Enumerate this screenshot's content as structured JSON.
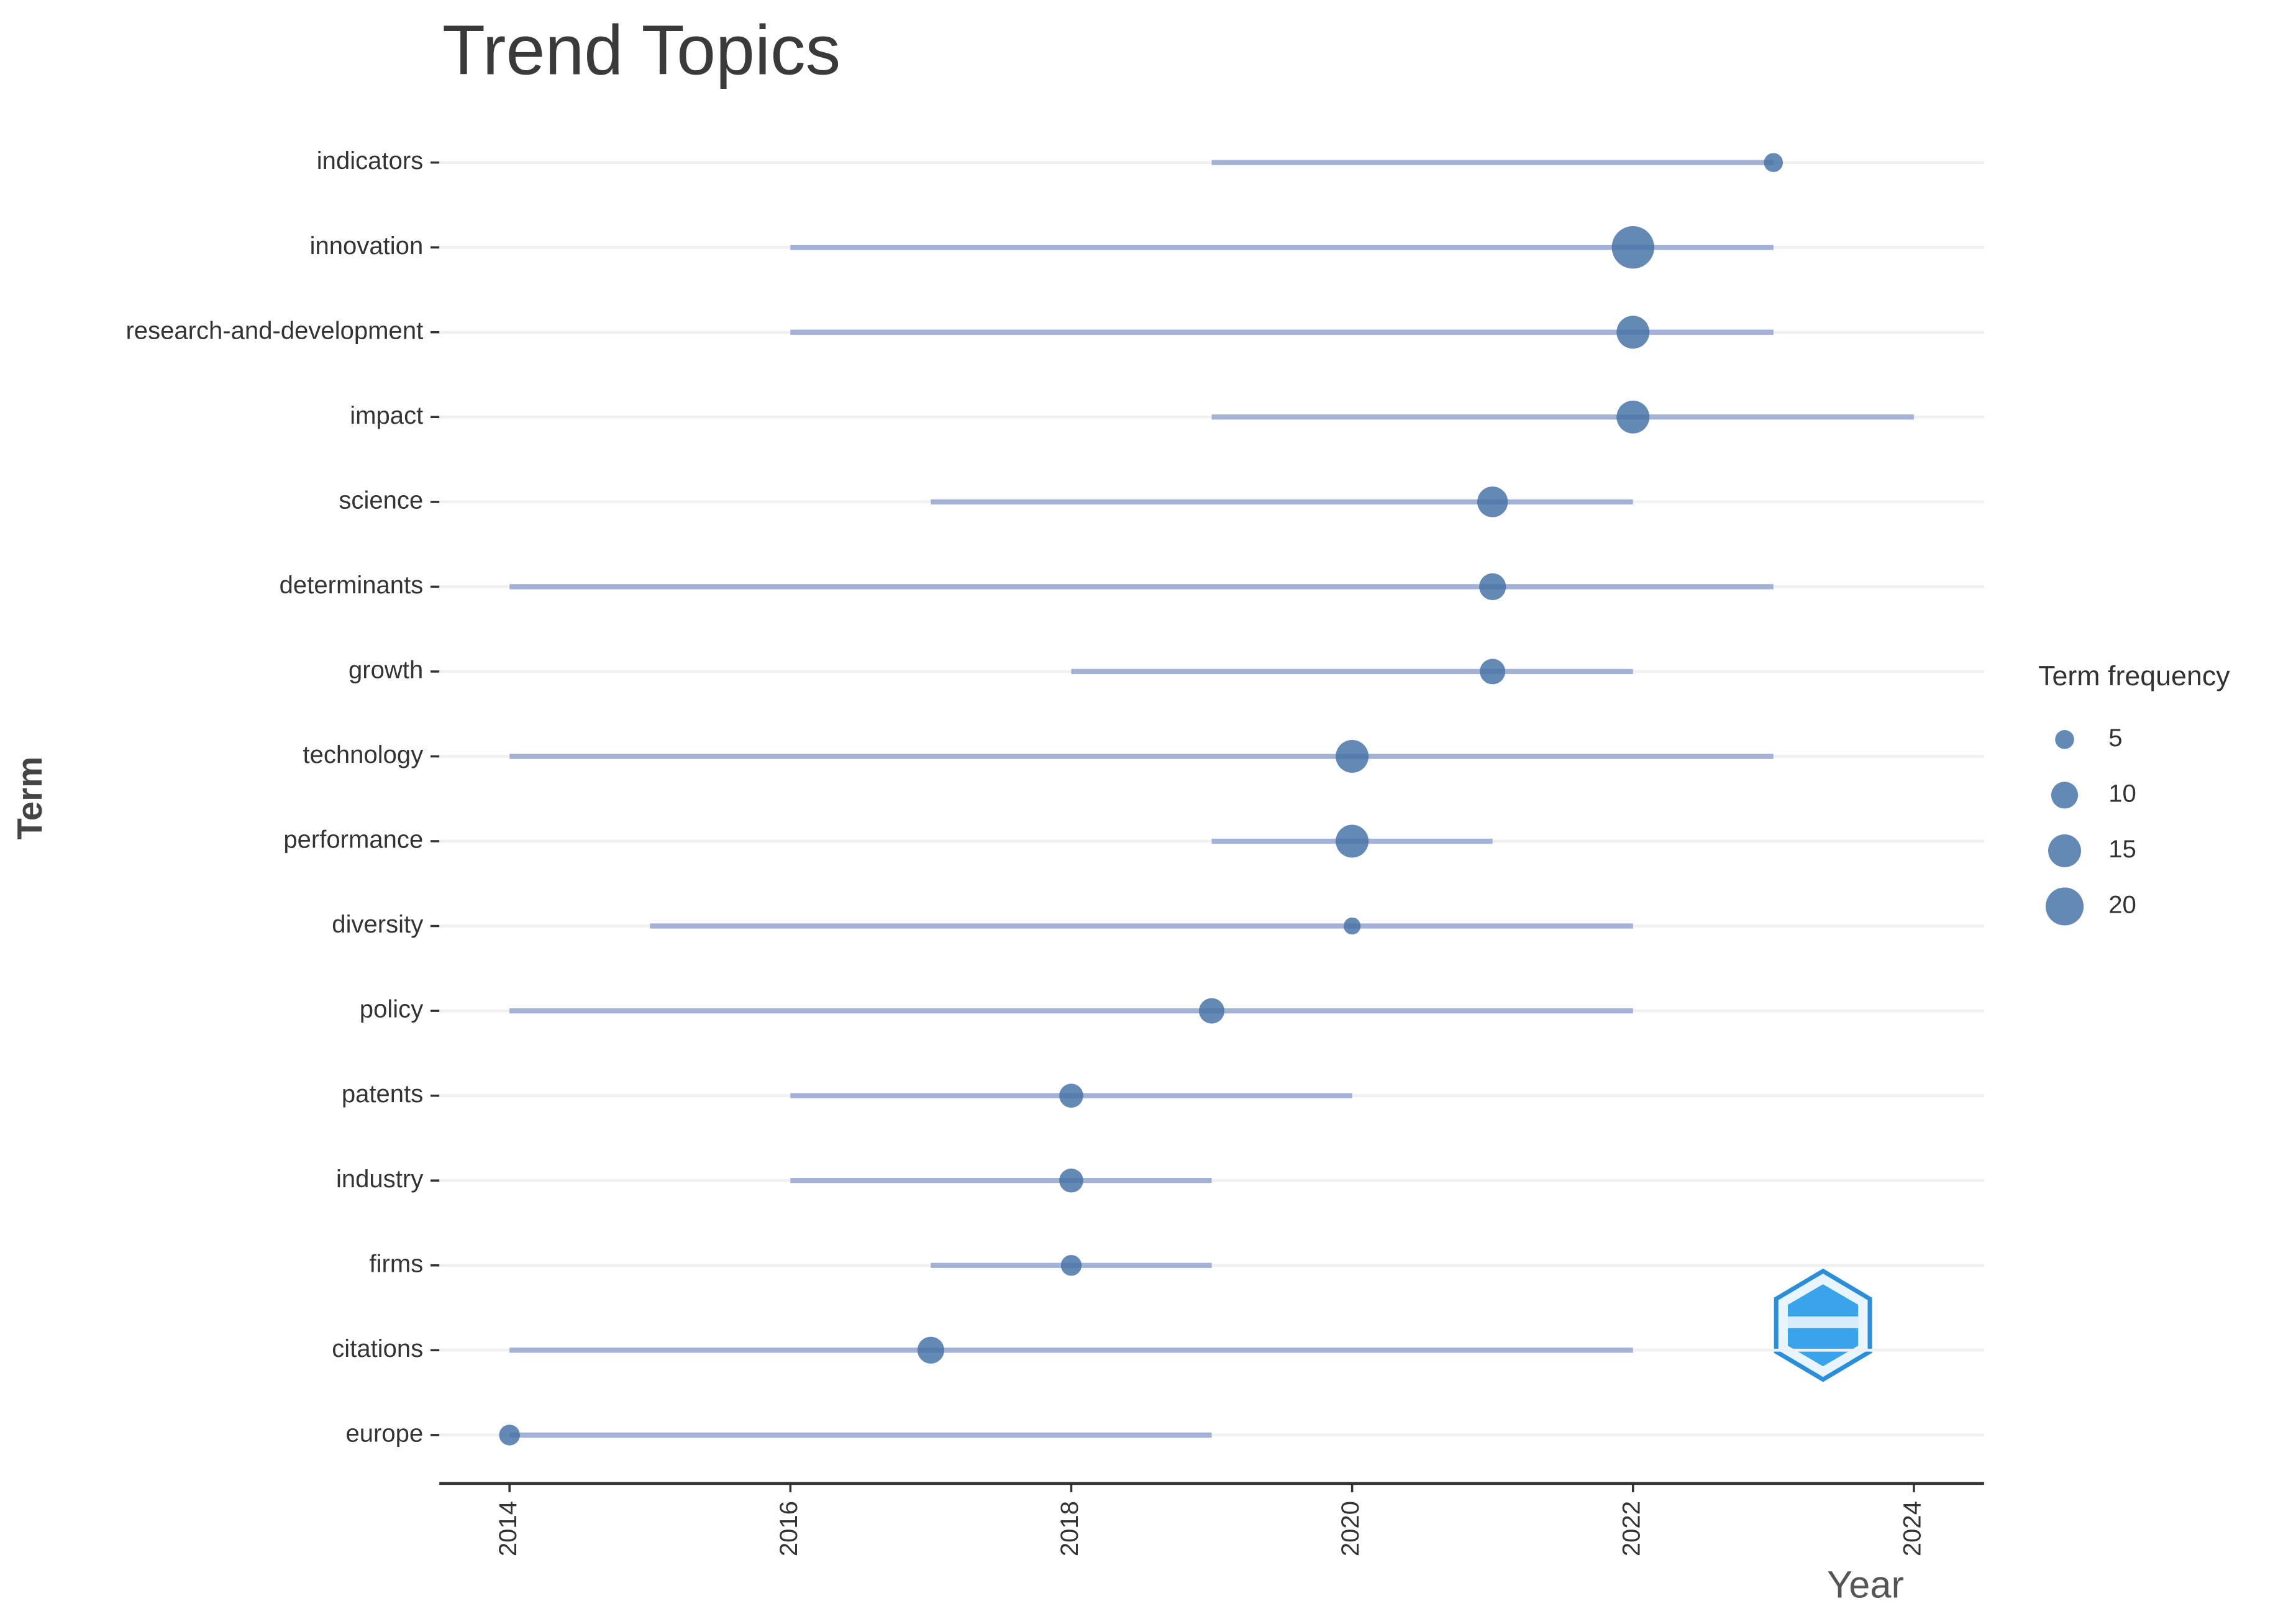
{
  "chart_data": {
    "type": "dumbbell",
    "title": "Trend Topics",
    "x_label": "Year",
    "y_label": "Term",
    "categories": [
      "indicators",
      "innovation",
      "research-and-development",
      "impact",
      "science",
      "determinants",
      "growth",
      "technology",
      "performance",
      "diversity",
      "policy",
      "patents",
      "industry",
      "firms",
      "citations",
      "europe"
    ],
    "start": [
      2019,
      2016,
      2016,
      2019,
      2017,
      2014,
      2018,
      2014,
      2019,
      2015,
      2014,
      2016,
      2016,
      2017,
      2014,
      2014
    ],
    "end": [
      2023,
      2023,
      2023,
      2024,
      2022,
      2023,
      2022,
      2023,
      2021,
      2022,
      2022,
      2020,
      2019,
      2019,
      2022,
      2019
    ],
    "median": [
      2023,
      2022,
      2022,
      2022,
      2021,
      2021,
      2021,
      2020,
      2020,
      2020,
      2019,
      2018,
      2018,
      2018,
      2017,
      2014
    ],
    "frequency": [
      5,
      25,
      15,
      15,
      13,
      10,
      9,
      15,
      15,
      4,
      9,
      8,
      8,
      6,
      10,
      6
    ],
    "line_color": "#a3b1d6",
    "point_color": "#4a74a8",
    "xlim": [
      2013.5,
      2024.5
    ],
    "xticks": [
      2014,
      2016,
      2018,
      2020,
      2022,
      2024
    ],
    "legend_title": "Term frequency",
    "size_legend": [
      5,
      10,
      15,
      20
    ],
    "grid": true
  }
}
